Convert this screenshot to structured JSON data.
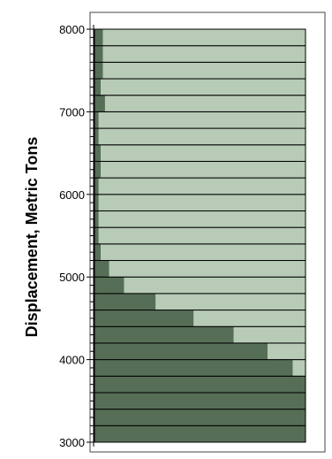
{
  "chart_data": {
    "type": "bar",
    "orientation": "horizontal",
    "stacked": "percent",
    "title": "",
    "ylabel": "Displacement, Metric Tons",
    "xlabel": "",
    "ylim": [
      3000,
      8000
    ],
    "yticks": [
      3000,
      4000,
      5000,
      6000,
      7000,
      8000
    ],
    "y_minor_step": 100,
    "bin_width": 200,
    "categories": [
      3100,
      3300,
      3500,
      3700,
      3900,
      4100,
      4300,
      4500,
      4700,
      4900,
      5100,
      5300,
      5500,
      5700,
      5900,
      6100,
      6300,
      6500,
      6700,
      6900,
      7100,
      7300,
      7500,
      7700,
      7900
    ],
    "series": [
      {
        "color": "#566e56",
        "values": [
          1.0,
          1.0,
          1.0,
          1.0,
          0.94,
          0.82,
          0.66,
          0.47,
          0.29,
          0.14,
          0.07,
          0.03,
          0.02,
          0.02,
          0.02,
          0.02,
          0.03,
          0.03,
          0.02,
          0.02,
          0.05,
          0.03,
          0.04,
          0.04,
          0.04
        ]
      },
      {
        "color": "#b7cbb7",
        "values": [
          0.0,
          0.0,
          0.0,
          0.0,
          0.06,
          0.18,
          0.34,
          0.53,
          0.71,
          0.86,
          0.93,
          0.97,
          0.98,
          0.98,
          0.98,
          0.98,
          0.97,
          0.97,
          0.98,
          0.98,
          0.95,
          0.97,
          0.96,
          0.96,
          0.96
        ]
      }
    ],
    "grid": false,
    "legend": "none"
  }
}
